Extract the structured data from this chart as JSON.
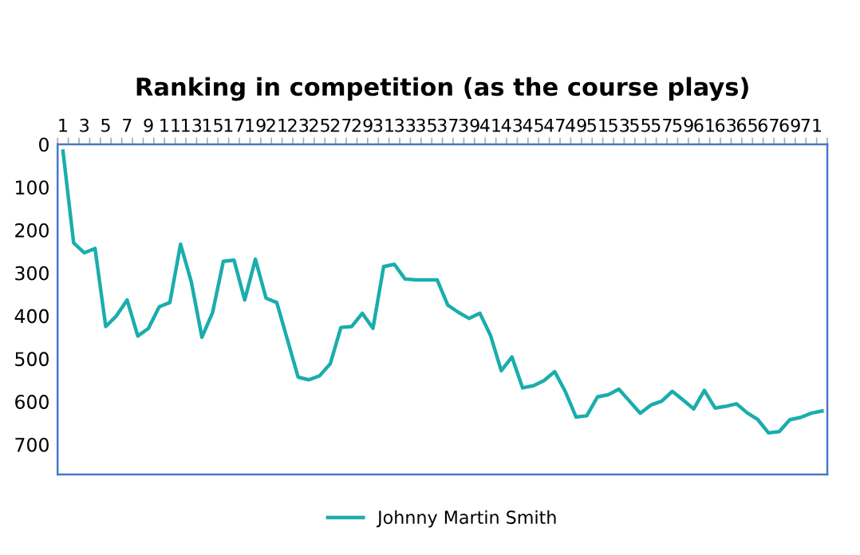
{
  "chart_data": {
    "type": "line",
    "title": "Ranking in competition (as the course plays)",
    "categories": [
      "1",
      null,
      "3",
      null,
      "5",
      null,
      "7",
      null,
      "9",
      null,
      "11",
      null,
      "13",
      null,
      "15",
      null,
      "17",
      null,
      "19",
      null,
      "21",
      null,
      "23",
      null,
      "25",
      null,
      "27",
      null,
      "29",
      null,
      "31",
      null,
      "33",
      null,
      "35",
      null,
      "37",
      null,
      "39",
      null,
      "41",
      null,
      "43",
      null,
      "45",
      null,
      "47",
      null,
      "49",
      null,
      "51",
      null,
      "53",
      null,
      "55",
      null,
      "57",
      null,
      "59",
      null,
      "61",
      null,
      "63",
      null,
      "65",
      null,
      "67",
      null,
      "69",
      null,
      "71",
      null
    ],
    "series": [
      {
        "name": "Johnny Martin Smith",
        "color": "#1aadad",
        "values": [
          16,
          230,
          253,
          243,
          425,
          400,
          363,
          447,
          429,
          379,
          369,
          233,
          320,
          450,
          392,
          273,
          270,
          363,
          268,
          359,
          369,
          456,
          543,
          549,
          540,
          512,
          427,
          425,
          394,
          429,
          285,
          280,
          314,
          316,
          316,
          316,
          375,
          392,
          406,
          394,
          446,
          528,
          496,
          568,
          563,
          551,
          530,
          577,
          636,
          633,
          589,
          584,
          571,
          599,
          627,
          608,
          599,
          576,
          596,
          617,
          574,
          615,
          611,
          605,
          626,
          642,
          673,
          670,
          642,
          637,
          627,
          622
        ]
      }
    ],
    "ylim": [
      770,
      0
    ],
    "yticks": [
      0,
      100,
      200,
      300,
      400,
      500,
      600,
      700
    ],
    "grid": false,
    "legend": "bottom",
    "marker": "none",
    "line_style": "solid"
  }
}
